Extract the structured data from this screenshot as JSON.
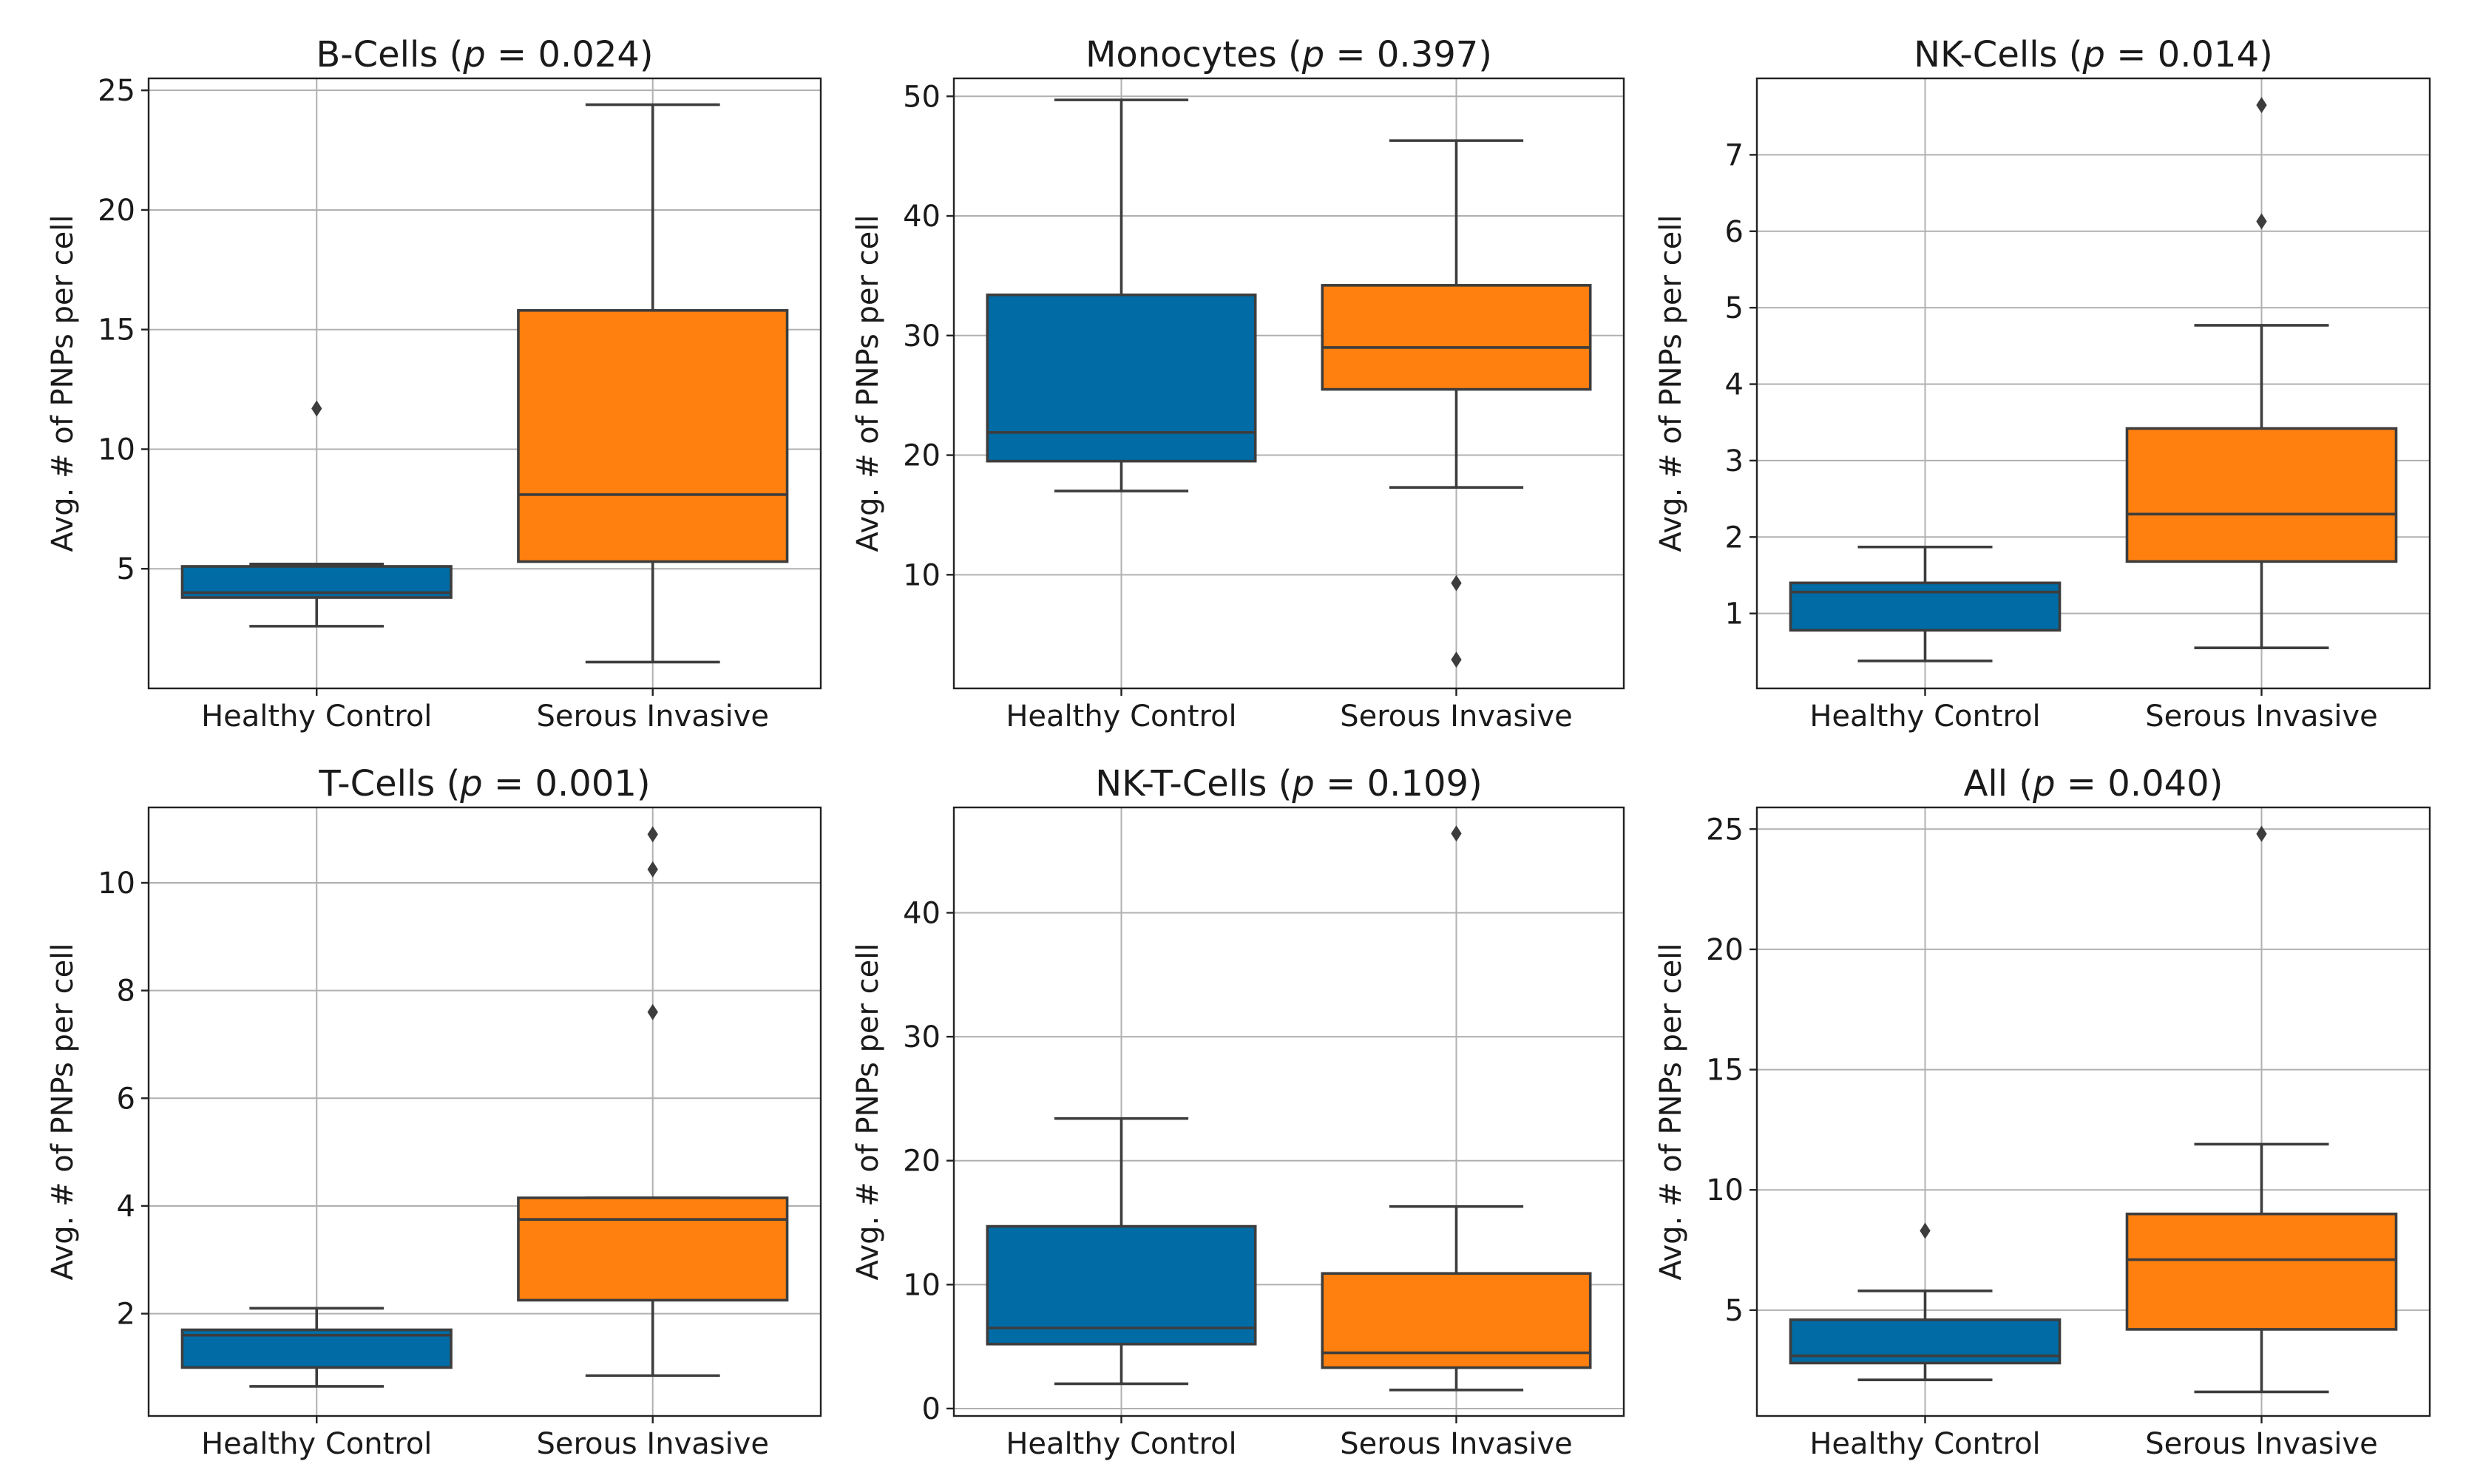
{
  "colors": {
    "healthy": "#006ba4",
    "serous": "#ff800e"
  },
  "chart_data": [
    {
      "type": "box",
      "title_prefix": "B-Cells (",
      "title_p": "p",
      "title_suffix": " = 0.024)",
      "ylabel": "Avg. # of PNPs per cell",
      "categories": [
        "Healthy Control",
        "Serous Invasive"
      ],
      "ylim": [
        0.0,
        25.5
      ],
      "yticks": [
        5,
        10,
        15,
        20,
        25
      ],
      "boxes": [
        {
          "name": "Healthy Control",
          "whislo": 2.6,
          "q1": 3.8,
          "med": 4.0,
          "q3": 5.1,
          "whishi": 5.2,
          "fliers": [
            11.7
          ]
        },
        {
          "name": "Serous Invasive",
          "whislo": 1.1,
          "q1": 5.3,
          "med": 8.1,
          "q3": 15.8,
          "whishi": 24.4,
          "fliers": []
        }
      ]
    },
    {
      "type": "box",
      "title_prefix": "Monocytes (",
      "title_p": "p",
      "title_suffix": " = 0.397)",
      "ylabel": "Avg. # of PNPs per cell",
      "categories": [
        "Healthy Control",
        "Serous Invasive"
      ],
      "ylim": [
        0.5,
        51.5
      ],
      "yticks": [
        10,
        20,
        30,
        40,
        50
      ],
      "boxes": [
        {
          "name": "Healthy Control",
          "whislo": 17.0,
          "q1": 19.5,
          "med": 21.9,
          "q3": 33.4,
          "whishi": 49.7,
          "fliers": []
        },
        {
          "name": "Serous Invasive",
          "whislo": 17.3,
          "q1": 25.5,
          "med": 29.0,
          "q3": 34.2,
          "whishi": 46.3,
          "fliers": [
            9.3,
            2.9
          ]
        }
      ]
    },
    {
      "type": "box",
      "title_prefix": "NK-Cells (",
      "title_p": "p",
      "title_suffix": " = 0.014)",
      "ylabel": "Avg. # of PNPs per cell",
      "categories": [
        "Healthy Control",
        "Serous Invasive"
      ],
      "ylim": [
        0.02,
        8.0
      ],
      "yticks": [
        1,
        2,
        3,
        4,
        5,
        6,
        7
      ],
      "boxes": [
        {
          "name": "Healthy Control",
          "whislo": 0.38,
          "q1": 0.78,
          "med": 1.28,
          "q3": 1.4,
          "whishi": 1.87,
          "fliers": []
        },
        {
          "name": "Serous Invasive",
          "whislo": 0.55,
          "q1": 1.68,
          "med": 2.3,
          "q3": 3.42,
          "whishi": 4.77,
          "fliers": [
            6.13,
            7.65
          ]
        }
      ]
    },
    {
      "type": "box",
      "title_prefix": "T-Cells (",
      "title_p": "p",
      "title_suffix": " = 0.001)",
      "ylabel": "Avg. # of PNPs per cell",
      "categories": [
        "Healthy Control",
        "Serous Invasive"
      ],
      "ylim": [
        0.1,
        11.4
      ],
      "yticks": [
        2,
        4,
        6,
        8,
        10
      ],
      "boxes": [
        {
          "name": "Healthy Control",
          "whislo": 0.65,
          "q1": 1.0,
          "med": 1.6,
          "q3": 1.7,
          "whishi": 2.1,
          "fliers": []
        },
        {
          "name": "Serous Invasive",
          "whislo": 0.85,
          "q1": 2.25,
          "med": 3.75,
          "q3": 4.15,
          "whishi": 4.15,
          "fliers": [
            7.6,
            10.25,
            10.9
          ]
        }
      ]
    },
    {
      "type": "box",
      "title_prefix": "NK-T-Cells (",
      "title_p": "p",
      "title_suffix": " = 0.109)",
      "ylabel": "Avg. # of PNPs per cell",
      "categories": [
        "Healthy Control",
        "Serous Invasive"
      ],
      "ylim": [
        -0.6,
        48.5
      ],
      "yticks": [
        0,
        10,
        20,
        30,
        40
      ],
      "boxes": [
        {
          "name": "Healthy Control",
          "whislo": 2.0,
          "q1": 5.2,
          "med": 6.5,
          "q3": 14.7,
          "whishi": 23.4,
          "fliers": []
        },
        {
          "name": "Serous Invasive",
          "whislo": 1.5,
          "q1": 3.3,
          "med": 4.5,
          "q3": 10.9,
          "whishi": 16.3,
          "fliers": [
            46.4
          ]
        }
      ]
    },
    {
      "type": "box",
      "title_prefix": "All (",
      "title_p": "p",
      "title_suffix": " = 0.040)",
      "ylabel": "Avg. # of PNPs per cell",
      "categories": [
        "Healthy Control",
        "Serous Invasive"
      ],
      "ylim": [
        0.6,
        25.9
      ],
      "yticks": [
        5,
        10,
        15,
        20,
        25
      ],
      "boxes": [
        {
          "name": "Healthy Control",
          "whislo": 2.1,
          "q1": 2.8,
          "med": 3.1,
          "q3": 4.6,
          "whishi": 5.8,
          "fliers": [
            8.3
          ]
        },
        {
          "name": "Serous Invasive",
          "whislo": 1.6,
          "q1": 4.2,
          "med": 7.1,
          "q3": 9.0,
          "whishi": 11.9,
          "fliers": [
            24.8
          ]
        }
      ]
    }
  ]
}
